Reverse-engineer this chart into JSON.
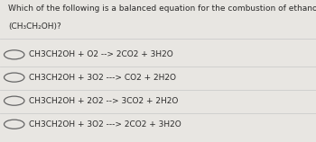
{
  "title_line1": "Which of the following is a balanced equation for the combustion of ethanol",
  "title_line2": "(CH₃CH₂OH)?",
  "bg_color": "#e8e6e2",
  "text_color": "#2a2a2a",
  "title_fontsize": 6.5,
  "option_fontsize": 6.5,
  "option_strings": [
    "CH3CH2OH + O2 --> 2CO2 + 3H2O",
    "CH3CH2OH + 3O2 ---> CO2 + 2H2O",
    "CH3CH2OH + 2O2 --> 3CO2 + 2H2O",
    "CH3CH2OH + 3O2 ---> 2CO2 + 3H2O"
  ],
  "circle_color": "#666666",
  "line_color": "#cccccc"
}
